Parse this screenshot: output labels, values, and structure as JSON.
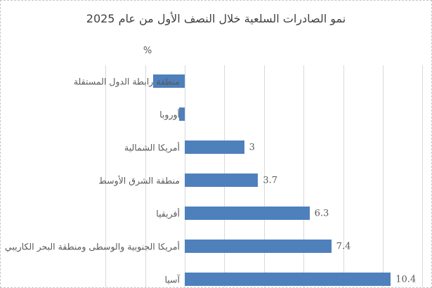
{
  "chart_data": {
    "type": "bar",
    "orientation": "horizontal",
    "title": "نمو الصادرات السلعية خلال النصف الأول من عام 2025",
    "axis_title": "%",
    "categories": [
      "منطقة رابطة الدول المستقلة",
      "أوروبا",
      "أمريكا الشمالية",
      "منطقة الشرق الأوسط",
      "أفريقيا",
      "أمريكا الجنوبية والوسطى ومنطقة البحر الكاريبي",
      "آسيا"
    ],
    "values": [
      -1.6,
      -0.3,
      3,
      3.7,
      6.3,
      7.4,
      10.4
    ],
    "value_labels": [
      "",
      "",
      "3",
      "3.7",
      "6.3",
      "7.4",
      "10.4"
    ],
    "xlim": [
      -4,
      12
    ],
    "gridline_step": 2,
    "grid": true,
    "legend": false,
    "rtl": true,
    "colors": {
      "bar": "#4E80BC",
      "labels": "#595959",
      "title": "#404040",
      "gridline": "#D9D9D9"
    }
  }
}
